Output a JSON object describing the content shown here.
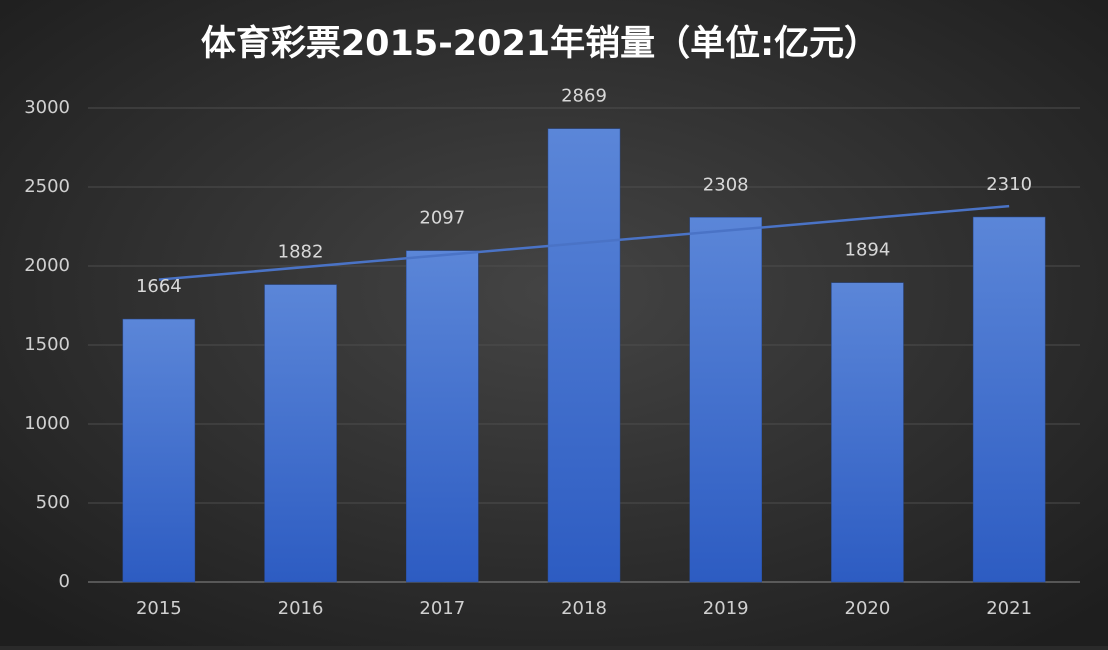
{
  "chart_data": {
    "type": "bar",
    "title": "体育彩票2015-2021年销量（单位:亿元）",
    "categories": [
      "2015",
      "2016",
      "2017",
      "2018",
      "2019",
      "2020",
      "2021"
    ],
    "values": [
      1664,
      1882,
      2097,
      2869,
      2308,
      1894,
      2310
    ],
    "color": "#4a78d4",
    "trendline": "linear",
    "trendline_color": "#4a73c6",
    "ylim": [
      0,
      3000
    ],
    "yticks": [
      0,
      500,
      1000,
      1500,
      2000,
      2500,
      3000
    ],
    "grid": true
  }
}
